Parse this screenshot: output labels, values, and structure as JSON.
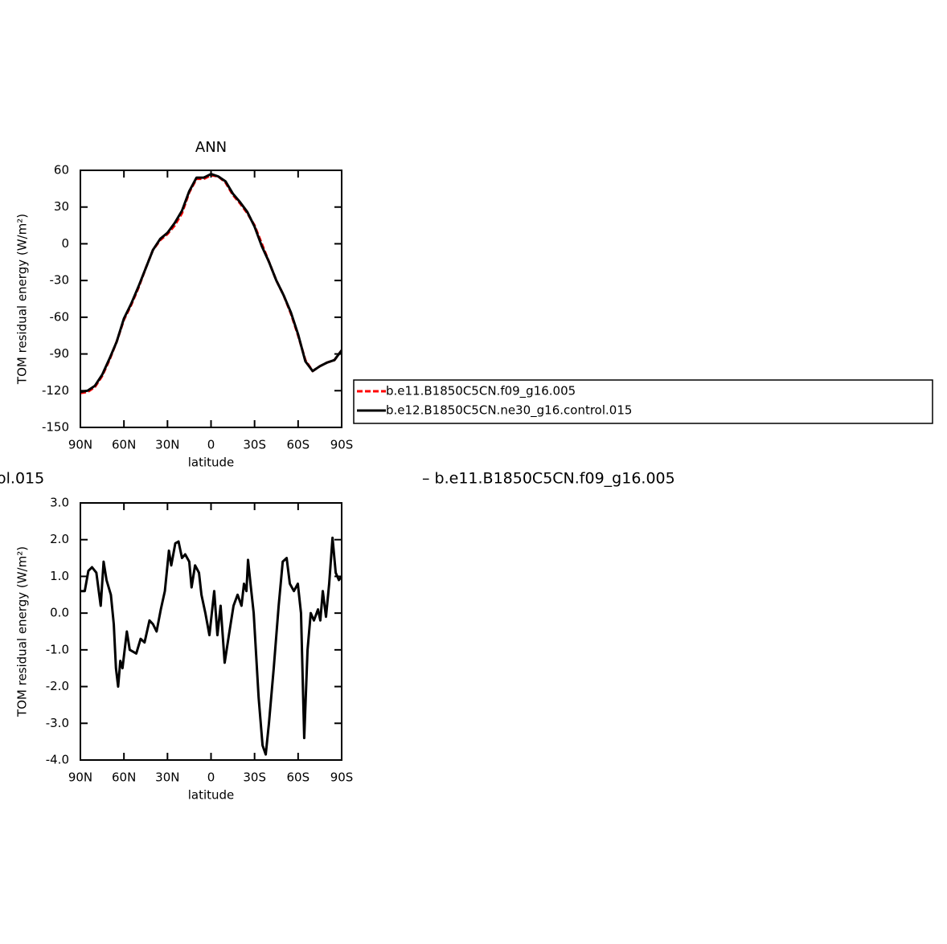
{
  "chart_data": [
    {
      "type": "line",
      "title": "ANN",
      "xlabel": "latitude",
      "ylabel": "TOM residual energy (W/m²)",
      "x": [
        90,
        85,
        80,
        75,
        70,
        65,
        60,
        55,
        50,
        45,
        40,
        35,
        30,
        25,
        20,
        15,
        10,
        5,
        0,
        -5,
        -10,
        -15,
        -20,
        -25,
        -30,
        -35,
        -40,
        -45,
        -50,
        -55,
        -60,
        -65,
        -70,
        -75,
        -80,
        -85,
        -90
      ],
      "series": [
        {
          "name": "b.e11.B1850C5CN.f09_g16.005",
          "color": "#ff0000",
          "dash": true,
          "values": [
            -122,
            -121,
            -117,
            -108,
            -95,
            -80,
            -62,
            -50,
            -36,
            -20,
            -5,
            3,
            8,
            15,
            25,
            42,
            53,
            53,
            56,
            55,
            50,
            40,
            33,
            25,
            15,
            0,
            -15,
            -30,
            -42,
            -57,
            -75,
            -95,
            -104,
            -100,
            -97,
            -95,
            -87
          ]
        },
        {
          "name": "b.e12.B1850C5CN.ne30_g16.control.015",
          "color": "#000000",
          "dash": false,
          "values": [
            -121,
            -120,
            -116,
            -107,
            -94,
            -80,
            -61,
            -49,
            -35,
            -20,
            -5,
            4,
            9,
            17,
            27,
            43,
            54,
            54,
            57,
            55,
            51,
            41,
            34,
            26,
            14,
            -2,
            -15,
            -30,
            -42,
            -56,
            -74,
            -96,
            -104,
            -100,
            -97,
            -95,
            -87
          ]
        }
      ],
      "xlim": [
        90,
        -90
      ],
      "xticks": [
        {
          "value": 90,
          "label": "90N"
        },
        {
          "value": 60,
          "label": "60N"
        },
        {
          "value": 30,
          "label": "30N"
        },
        0,
        {
          "value": -30,
          "label": "30S"
        },
        {
          "value": -60,
          "label": "60S"
        },
        {
          "value": -90,
          "label": "90S"
        }
      ],
      "ylim": [
        -150,
        60
      ],
      "yticks": [
        -150,
        -120,
        -90,
        -60,
        -30,
        0,
        30,
        60
      ],
      "legend": "right"
    },
    {
      "type": "line",
      "title": [
        "ol.015",
        "– b.e11.B1850C5CN.f09_g16.005"
      ],
      "xlabel": "latitude",
      "ylabel": "TOM residual energy (W/m²)",
      "x": [
        90,
        87,
        84.5,
        82,
        79,
        76,
        74,
        72,
        69,
        67,
        65.5,
        64,
        62.5,
        61,
        58,
        56,
        51.5,
        48.5,
        45.8,
        42.4,
        40,
        37.5,
        34.6,
        31.8,
        29,
        27.4,
        24.6,
        22.4,
        20,
        17.8,
        15,
        13.4,
        11,
        8.3,
        6.6,
        3.9,
        1.1,
        -2.2,
        -4.4,
        -6.6,
        -9.4,
        -12.7,
        -15.5,
        -18.3,
        -21,
        -22.7,
        -24.4,
        -25.5,
        -27.2,
        -29.4,
        -32.8,
        -35.5,
        -37.7,
        -39.9,
        -43.2,
        -46.6,
        -49.4,
        -52.1,
        -54.3,
        -57.1,
        -59.8,
        -62,
        -64.2,
        -66.5,
        -68.7,
        -70.9,
        -73.7,
        -75.3,
        -77,
        -79.2,
        -81.4,
        -83.7,
        -85.9,
        -88.1,
        -90
      ],
      "series": [
        {
          "color": "#000000",
          "dash": false,
          "values": [
            0.6,
            0.6,
            1.15,
            1.25,
            1.1,
            0.2,
            1.4,
            0.9,
            0.5,
            -0.3,
            -1.5,
            -2.0,
            -1.3,
            -1.5,
            -0.5,
            -1.0,
            -1.1,
            -0.7,
            -0.8,
            -0.2,
            -0.3,
            -0.5,
            0.1,
            0.6,
            1.7,
            1.3,
            1.9,
            1.95,
            1.5,
            1.6,
            1.4,
            0.7,
            1.3,
            1.1,
            0.5,
            0.0,
            -0.6,
            0.6,
            -0.6,
            0.2,
            -1.35,
            -0.5,
            0.2,
            0.5,
            0.2,
            0.8,
            0.6,
            1.45,
            0.8,
            0.0,
            -2.3,
            -3.6,
            -3.85,
            -3.0,
            -1.5,
            0.2,
            1.4,
            1.5,
            0.8,
            0.6,
            0.8,
            0.0,
            -3.4,
            -1.0,
            0.0,
            -0.2,
            0.1,
            -0.2,
            0.6,
            -0.1,
            0.8,
            2.05,
            1.1,
            0.9,
            1.0
          ]
        }
      ],
      "xlim": [
        90,
        -90
      ],
      "xticks": [
        {
          "value": 90,
          "label": "90N"
        },
        {
          "value": 60,
          "label": "60N"
        },
        {
          "value": 30,
          "label": "30N"
        },
        0,
        {
          "value": -30,
          "label": "30S"
        },
        {
          "value": -60,
          "label": "60S"
        },
        {
          "value": -90,
          "label": "90S"
        }
      ],
      "ylim": [
        -4,
        3
      ],
      "yticks": [
        {
          "value": -4,
          "label": "-4.0"
        },
        {
          "value": -3,
          "label": "-3.0"
        },
        {
          "value": -2,
          "label": "-2.0"
        },
        {
          "value": -1,
          "label": "-1.0"
        },
        {
          "value": 0,
          "label": "0.0"
        },
        {
          "value": 1,
          "label": "1.0"
        },
        {
          "value": 2,
          "label": "2.0"
        },
        {
          "value": 3,
          "label": "3.0"
        }
      ]
    }
  ]
}
